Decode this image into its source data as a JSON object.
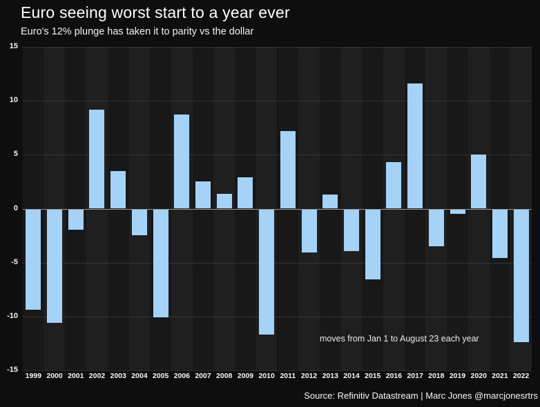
{
  "header": {
    "title": "Euro seeing worst start to a year ever",
    "subtitle": "Euro's 12% plunge has taken it to parity vs the dollar"
  },
  "chart_data": {
    "type": "bar",
    "title": "Euro seeing worst start to a year ever",
    "subtitle": "Euro's 12% plunge has taken it to parity vs the dollar",
    "categories": [
      "1999",
      "2000",
      "2001",
      "2002",
      "2003",
      "2004",
      "2005",
      "2006",
      "2007",
      "2008",
      "2009",
      "2010",
      "2011",
      "2012",
      "2013",
      "2014",
      "2015",
      "2016",
      "2017",
      "2018",
      "2019",
      "2020",
      "2021",
      "2022"
    ],
    "values": [
      -9.3,
      -10.5,
      -1.9,
      9.2,
      3.5,
      -2.4,
      -10.0,
      8.7,
      2.5,
      1.4,
      2.9,
      -11.6,
      7.2,
      -4.0,
      1.3,
      -3.9,
      -6.5,
      4.3,
      11.6,
      -3.4,
      -0.4,
      5.0,
      -4.5,
      -12.3
    ],
    "ylim": [
      -15,
      15
    ],
    "yticks": [
      15,
      10,
      5,
      0,
      -5,
      -10,
      -15
    ],
    "xlabel": "",
    "ylabel": "",
    "grid": "horizontal-dotted",
    "legend": "none",
    "annotation": "moves from Jan 1 to August 23 each year",
    "source": "Source: Refinitiv Datastream | Marc Jones @marcjonesrtrs",
    "colors": {
      "bar": "#a4d3f7",
      "band_dark": "#181818",
      "band_light": "#1f1f1f",
      "background": "#0e0e0e",
      "zero_line": "#9a9a9a",
      "grid_line": "#4f4f4f",
      "text": "#ffffff"
    }
  }
}
